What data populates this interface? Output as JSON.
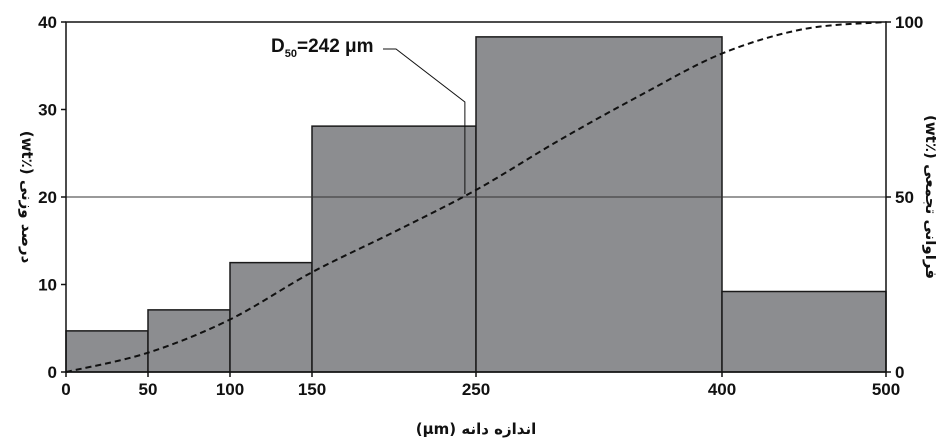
{
  "chart_data": {
    "type": "bar",
    "bins": [
      {
        "from": 0,
        "to": 50,
        "value": 4.7
      },
      {
        "from": 50,
        "to": 100,
        "value": 7.1
      },
      {
        "from": 100,
        "to": 150,
        "value": 12.5
      },
      {
        "from": 150,
        "to": 250,
        "value": 28.1
      },
      {
        "from": 250,
        "to": 400,
        "value": 38.3
      },
      {
        "from": 400,
        "to": 500,
        "value": 9.2
      }
    ],
    "cumulative_curve": {
      "x": [
        0,
        50,
        100,
        150,
        200,
        250,
        300,
        350,
        400,
        450,
        500
      ],
      "y": [
        0,
        5.5,
        15,
        28.5,
        40,
        52,
        66,
        79,
        91,
        98,
        100
      ]
    },
    "x_ticks": [
      "0",
      "50",
      "100",
      "150",
      "250",
      "400",
      "500"
    ],
    "x_tick_values": [
      0,
      50,
      100,
      150,
      250,
      400,
      500
    ],
    "y_ticks": [
      "0",
      "10",
      "20",
      "30",
      "40"
    ],
    "y_tick_values": [
      0,
      10,
      20,
      30,
      40
    ],
    "y2_ticks": [
      "0",
      "50",
      "100"
    ],
    "y2_tick_values": [
      0,
      50,
      100
    ],
    "xlabel": "اندازه دانه (μm)",
    "ylabel": "درصد وزنی (٪wt)",
    "y2label": "فراوانی تجمعی (٪wt)",
    "xlim": [
      0,
      500
    ],
    "ylim": [
      0,
      40
    ],
    "y2lim": [
      0,
      100
    ],
    "reference_line_y": 20,
    "annotation": {
      "prefix": "D",
      "subscript": "50",
      "suffix": "=242 μm",
      "x_value": 242
    },
    "colors": {
      "bar_fill": "#8c8d90",
      "bar_stroke": "#1a1a1a",
      "curve": "#111111",
      "axis": "#111111"
    }
  }
}
